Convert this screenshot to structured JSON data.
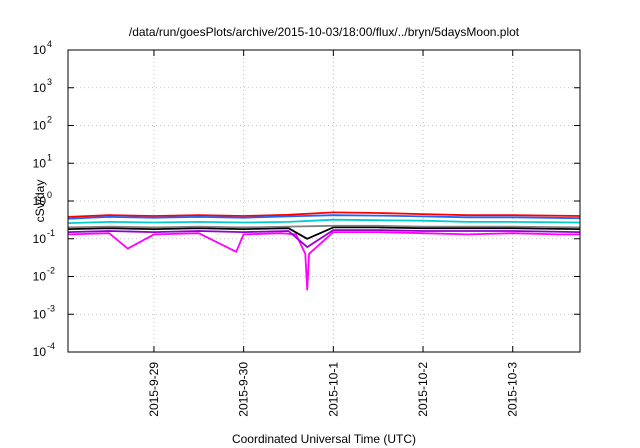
{
  "chart_data": {
    "type": "line",
    "title": "/data/run/goesPlots/archive/2015-10-03/18:00/flux/../bryn/5daysMoon.plot",
    "xlabel": "Coordinated Universal Time (UTC)",
    "ylabel": "cSv/day",
    "y_scale": "log",
    "ylim": [
      0.0001,
      10000
    ],
    "y_ticks": [
      {
        "exp": "-4",
        "value": 0.0001
      },
      {
        "exp": "-3",
        "value": 0.001
      },
      {
        "exp": "-2",
        "value": 0.01
      },
      {
        "exp": "-1",
        "value": 0.1
      },
      {
        "exp": "0",
        "value": 1
      },
      {
        "exp": "1",
        "value": 10
      },
      {
        "exp": "2",
        "value": 100
      },
      {
        "exp": "3",
        "value": 1000
      },
      {
        "exp": "4",
        "value": 10000
      }
    ],
    "y_tick_base": "10",
    "x_axis_type": "date",
    "xlim": [
      "2015-09-28T01:00",
      "2015-10-03T18:00"
    ],
    "x_ticks": [
      {
        "label": "2015-9-29",
        "date": "2015-09-29T00:00"
      },
      {
        "label": "2015-9-30",
        "date": "2015-09-30T00:00"
      },
      {
        "label": "2015-10-1",
        "date": "2015-10-01T00:00"
      },
      {
        "label": "2015-10-2",
        "date": "2015-10-02T00:00"
      },
      {
        "label": "2015-10-3",
        "date": "2015-10-03T00:00"
      }
    ],
    "grid": true,
    "legend": "none",
    "series": [
      {
        "color": "#ff00ff",
        "x": [
          "2015-09-28T01:00",
          "2015-09-28T12:00",
          "2015-09-28T17:00",
          "2015-09-29T00:00",
          "2015-09-29T12:00",
          "2015-09-29T22:00",
          "2015-09-30T00:00",
          "2015-09-30T10:00",
          "2015-09-30T14:00",
          "2015-09-30T16:30",
          "2015-09-30T17:00",
          "2015-09-30T17:30",
          "2015-10-01T00:00",
          "2015-10-01T12:00",
          "2015-10-02T00:00",
          "2015-10-02T12:00",
          "2015-10-03T00:00",
          "2015-10-03T12:00",
          "2015-10-03T18:00"
        ],
        "y": [
          0.13,
          0.14,
          0.055,
          0.13,
          0.14,
          0.045,
          0.13,
          0.14,
          0.13,
          0.04,
          0.0045,
          0.04,
          0.15,
          0.15,
          0.14,
          0.13,
          0.14,
          0.13,
          0.13
        ]
      },
      {
        "color": "#9400d3",
        "x": [
          "2015-09-28T01:00",
          "2015-09-28T12:00",
          "2015-09-29T00:00",
          "2015-09-29T12:00",
          "2015-09-30T00:00",
          "2015-09-30T12:00",
          "2015-09-30T17:00",
          "2015-10-01T00:00",
          "2015-10-01T12:00",
          "2015-10-02T00:00",
          "2015-10-02T12:00",
          "2015-10-03T00:00",
          "2015-10-03T18:00"
        ],
        "y": [
          0.15,
          0.16,
          0.15,
          0.16,
          0.15,
          0.16,
          0.06,
          0.17,
          0.17,
          0.16,
          0.16,
          0.16,
          0.15
        ]
      },
      {
        "color": "#000000",
        "x": [
          "2015-09-28T01:00",
          "2015-09-28T12:00",
          "2015-09-29T00:00",
          "2015-09-29T12:00",
          "2015-09-30T00:00",
          "2015-09-30T12:00",
          "2015-09-30T17:00",
          "2015-10-01T00:00",
          "2015-10-01T12:00",
          "2015-10-02T00:00",
          "2015-10-02T12:00",
          "2015-10-03T00:00",
          "2015-10-03T18:00"
        ],
        "y": [
          0.18,
          0.19,
          0.18,
          0.19,
          0.18,
          0.19,
          0.1,
          0.2,
          0.2,
          0.19,
          0.19,
          0.19,
          0.18
        ]
      },
      {
        "color": "#808080",
        "x": [
          "2015-09-28T01:00",
          "2015-09-28T12:00",
          "2015-09-29T00:00",
          "2015-09-29T12:00",
          "2015-09-30T00:00",
          "2015-09-30T12:00",
          "2015-10-01T00:00",
          "2015-10-01T12:00",
          "2015-10-02T00:00",
          "2015-10-02T12:00",
          "2015-10-03T00:00",
          "2015-10-03T18:00"
        ],
        "y": [
          0.2,
          0.21,
          0.2,
          0.21,
          0.2,
          0.21,
          0.22,
          0.22,
          0.21,
          0.21,
          0.21,
          0.2
        ]
      },
      {
        "color": "#00cccc",
        "x": [
          "2015-09-28T01:00",
          "2015-09-28T12:00",
          "2015-09-29T00:00",
          "2015-09-29T12:00",
          "2015-09-30T00:00",
          "2015-09-30T12:00",
          "2015-10-01T00:00",
          "2015-10-01T12:00",
          "2015-10-02T00:00",
          "2015-10-02T12:00",
          "2015-10-03T00:00",
          "2015-10-03T18:00"
        ],
        "y": [
          0.26,
          0.28,
          0.27,
          0.28,
          0.27,
          0.28,
          0.32,
          0.31,
          0.3,
          0.28,
          0.28,
          0.27
        ]
      },
      {
        "color": "#ff0000",
        "x": [
          "2015-09-28T01:00",
          "2015-09-28T12:00",
          "2015-09-29T00:00",
          "2015-09-29T12:00",
          "2015-09-30T00:00",
          "2015-09-30T12:00",
          "2015-10-01T00:00",
          "2015-10-01T12:00",
          "2015-10-02T00:00",
          "2015-10-02T12:00",
          "2015-10-03T00:00",
          "2015-10-03T18:00"
        ],
        "y": [
          0.38,
          0.42,
          0.4,
          0.42,
          0.4,
          0.43,
          0.5,
          0.48,
          0.45,
          0.42,
          0.42,
          0.4
        ]
      },
      {
        "color": "#1e64ff",
        "x": [
          "2015-09-28T01:00",
          "2015-09-28T12:00",
          "2015-09-29T00:00",
          "2015-09-29T12:00",
          "2015-09-30T00:00",
          "2015-09-30T12:00",
          "2015-10-01T00:00",
          "2015-10-01T12:00",
          "2015-10-02T00:00",
          "2015-10-02T12:00",
          "2015-10-03T00:00",
          "2015-10-03T18:00"
        ],
        "y": [
          0.34,
          0.38,
          0.36,
          0.38,
          0.36,
          0.39,
          0.42,
          0.41,
          0.39,
          0.37,
          0.37,
          0.35
        ]
      }
    ]
  }
}
